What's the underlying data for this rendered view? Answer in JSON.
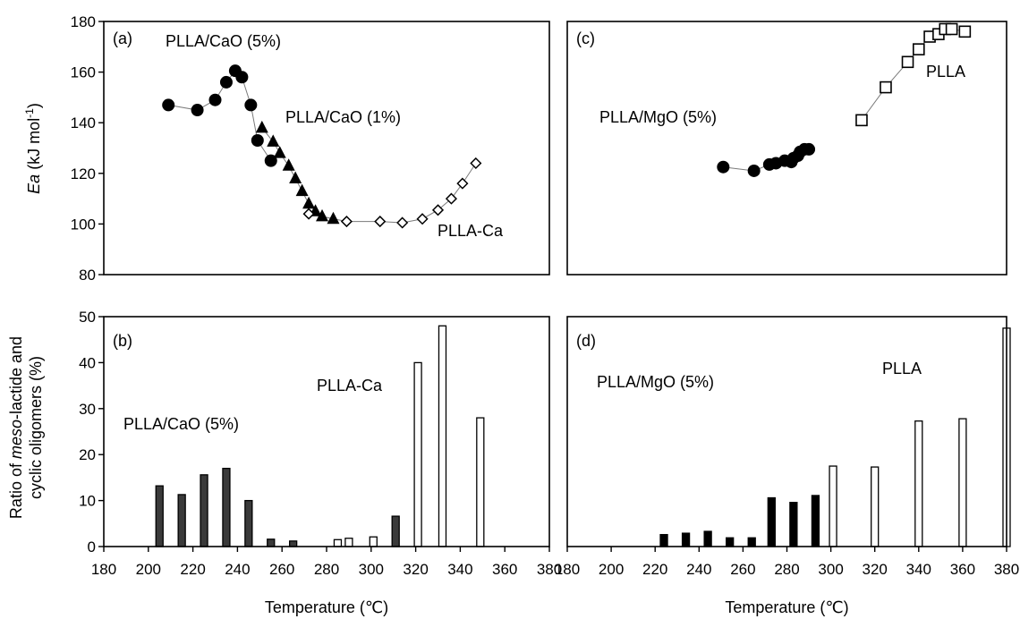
{
  "chart_data": [
    {
      "panel_label": "(a)",
      "type": "scatter",
      "ylabel": {
        "italic": "Ea",
        "rest": " (kJ mol",
        "sup": "-1",
        "close": ")"
      },
      "xlim": [
        180,
        380
      ],
      "ylim": [
        80,
        180
      ],
      "xticks_shown": false,
      "yticks": [
        "80",
        "100",
        "120",
        "140",
        "160",
        "180"
      ],
      "series": [
        {
          "name": "PLLA/CaO (5%)",
          "marker": "filled-circle",
          "x": [
            209,
            222,
            230,
            235,
            239,
            242,
            246,
            249,
            255
          ],
          "y": [
            147,
            145,
            149,
            156,
            160.5,
            158,
            147,
            133,
            125
          ]
        },
        {
          "name": "PLLA/CaO (1%)",
          "marker": "filled-triangle",
          "x": [
            251,
            256,
            259,
            263,
            266,
            269,
            272,
            275,
            278,
            283
          ],
          "y": [
            138,
            132.5,
            128,
            123,
            118,
            113,
            108,
            105,
            103,
            102
          ]
        },
        {
          "name": "PLLA-Ca",
          "marker": "open-diamond",
          "x": [
            272,
            289,
            304,
            314,
            323,
            330,
            336,
            341,
            347
          ],
          "y": [
            104,
            101,
            101,
            100.5,
            102,
            105.5,
            110,
            116,
            124
          ]
        }
      ]
    },
    {
      "panel_label": "(c)",
      "type": "scatter",
      "xlim": [
        180,
        380
      ],
      "ylim": [
        80,
        180
      ],
      "xticks_shown": false,
      "series": [
        {
          "name": "PLLA/MgO (5%)",
          "marker": "filled-circle",
          "x": [
            251,
            265,
            272,
            275,
            279,
            282,
            283,
            285,
            286,
            288,
            290
          ],
          "y": [
            122.5,
            121,
            123.5,
            124,
            125,
            124.5,
            126,
            127,
            128.5,
            129.5,
            129.5
          ]
        },
        {
          "name": "PLLA",
          "marker": "open-square",
          "x": [
            314,
            325,
            335,
            340,
            345,
            349,
            352,
            355,
            361
          ],
          "y": [
            141,
            154,
            164,
            169,
            174,
            175,
            177,
            177,
            176
          ]
        }
      ]
    },
    {
      "panel_label": "(b)",
      "type": "bar",
      "ylabel_lines": [
        {
          "pre": "Ratio of ",
          "italic": "meso",
          "post": "-lactide and"
        },
        {
          "pre": "cyclic oligomers (%)",
          "italic": "",
          "post": ""
        }
      ],
      "xlabel": "Temperature (℃)",
      "xlim": [
        180,
        380
      ],
      "ylim": [
        0,
        50
      ],
      "xticks": [
        "180",
        "200",
        "220",
        "240",
        "260",
        "280",
        "300",
        "320",
        "340",
        "360",
        "380"
      ],
      "yticks": [
        "0",
        "10",
        "20",
        "30",
        "40",
        "50"
      ],
      "series": [
        {
          "name": "PLLA/CaO (5%)",
          "fill": "#3a3a3a",
          "x": [
            205,
            215,
            225,
            235,
            245,
            255,
            265,
            311
          ],
          "values": [
            13.2,
            11.3,
            15.6,
            17,
            10,
            1.6,
            1.2,
            6.6
          ]
        },
        {
          "name": "PLLA-Ca",
          "fill": "#ffffff",
          "x": [
            285,
            290,
            301,
            321,
            332,
            349
          ],
          "values": [
            1.5,
            1.8,
            2.1,
            40,
            48,
            28
          ]
        }
      ]
    },
    {
      "panel_label": "(d)",
      "type": "bar",
      "xlabel": "Temperature (℃)",
      "xlim": [
        180,
        380
      ],
      "ylim": [
        0,
        50
      ],
      "xticks": [
        "180",
        "200",
        "220",
        "240",
        "260",
        "280",
        "300",
        "320",
        "340",
        "360",
        "380"
      ],
      "series": [
        {
          "name": "PLLA/MgO (5%)",
          "fill": "#000000",
          "x": [
            224,
            234,
            244,
            254,
            264,
            273,
            283,
            293
          ],
          "values": [
            2.6,
            2.9,
            3.3,
            1.9,
            1.9,
            10.6,
            9.6,
            11.1
          ]
        },
        {
          "name": "PLLA",
          "fill": "#ffffff",
          "x": [
            301,
            320,
            340,
            360,
            380
          ],
          "values": [
            17.5,
            17.3,
            27.3,
            27.8,
            47.5
          ]
        }
      ]
    }
  ]
}
